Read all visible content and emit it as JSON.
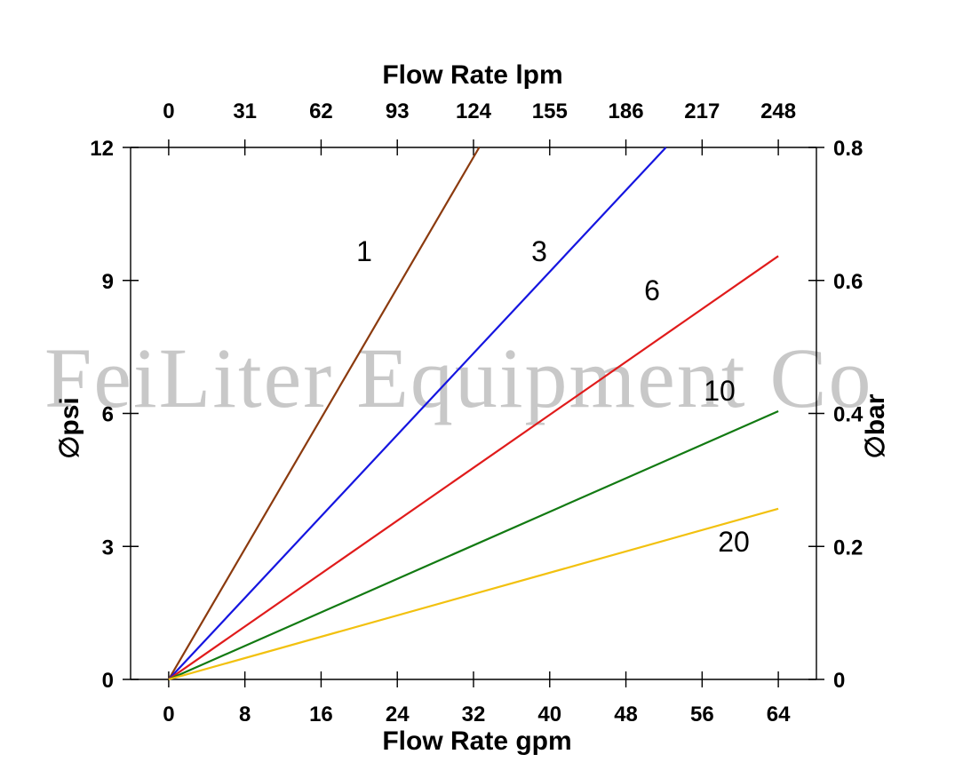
{
  "watermark": "FeiLiter Equipment Co",
  "chart_data": {
    "type": "line",
    "top_axis": {
      "title": "Flow Rate lpm",
      "ticks": [
        "0",
        "31",
        "62",
        "93",
        "124",
        "155",
        "186",
        "217",
        "248"
      ]
    },
    "bottom_axis": {
      "title": "Flow Rate gpm",
      "ticks": [
        "0",
        "8",
        "16",
        "24",
        "32",
        "40",
        "48",
        "56",
        "64"
      ],
      "range": [
        -4,
        68
      ]
    },
    "left_axis": {
      "title": "∅psi",
      "ticks": [
        "0",
        "3",
        "6",
        "9",
        "12"
      ],
      "tick_values": [
        0,
        3,
        6,
        9,
        12
      ],
      "range": [
        0,
        12
      ]
    },
    "right_axis": {
      "title": "∅bar",
      "ticks": [
        "0",
        "0.2",
        "0.4",
        "0.6",
        "0.8"
      ],
      "tick_values": [
        0,
        0.2,
        0.4,
        0.6,
        0.8
      ],
      "range": [
        0,
        0.8
      ]
    },
    "grid": false,
    "legend": "inline labels",
    "series": [
      {
        "name": "1",
        "color": "#8B3A0E",
        "x": [
          0,
          32.6
        ],
        "y": [
          0,
          12
        ]
      },
      {
        "name": "3",
        "color": "#1515E0",
        "x": [
          0,
          52.2
        ],
        "y": [
          0,
          12
        ]
      },
      {
        "name": "6",
        "color": "#E01B1B",
        "x": [
          0,
          64
        ],
        "y": [
          0,
          9.55
        ]
      },
      {
        "name": "10",
        "color": "#127A12",
        "x": [
          0,
          64
        ],
        "y": [
          0,
          6.05
        ]
      },
      {
        "name": "20",
        "color": "#F2C10F",
        "x": [
          0,
          64
        ],
        "y": [
          0,
          3.85
        ]
      }
    ]
  }
}
